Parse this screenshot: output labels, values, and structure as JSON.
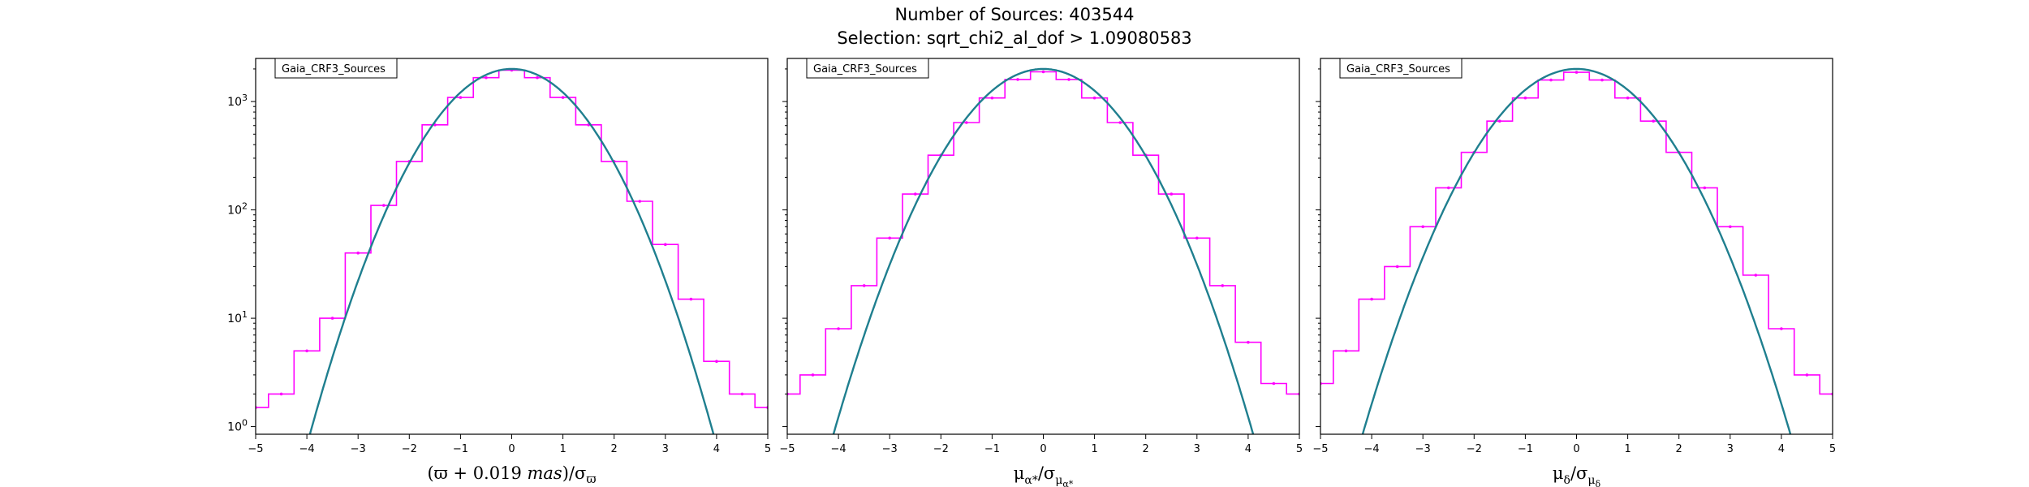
{
  "figure": {
    "title_line1": "Number of Sources: 403544",
    "title_line2": "Selection: sqrt_chi2_al_dof > 1.09080583"
  },
  "colors": {
    "histogram": "#ff00ff",
    "fit": "#1f7f8f",
    "axes": "#000000"
  },
  "chart_data": [
    {
      "type": "line",
      "panel": "left",
      "legend": "Gaia_CRF3_Sources",
      "xlabel": "(ϖ + 0.019 mas)/σϖ",
      "ylabel": "",
      "xlim": [
        -5,
        5
      ],
      "ylim": [
        0.85,
        2500
      ],
      "yscale": "log",
      "xticks": [
        "−5",
        "−4",
        "−3",
        "−2",
        "−1",
        "0",
        "1",
        "2",
        "3",
        "4",
        "5"
      ],
      "yticks": [
        {
          "base": "10",
          "exp": "0"
        },
        {
          "base": "10",
          "exp": "1"
        },
        {
          "base": "10",
          "exp": "2"
        },
        {
          "base": "10",
          "exp": "3"
        }
      ],
      "series": [
        {
          "kind": "histogram",
          "style": "step",
          "x": [
            -5.0,
            -4.5,
            -4.0,
            -3.5,
            -3.0,
            -2.5,
            -2.0,
            -1.5,
            -1.0,
            -0.5,
            0.0,
            0.5,
            1.0,
            1.5,
            2.0,
            2.5,
            3.0,
            3.5,
            4.0,
            4.5,
            5.0
          ],
          "y": [
            1.5,
            2,
            5,
            10,
            40,
            110,
            280,
            610,
            1090,
            1660,
            1950,
            1660,
            1090,
            610,
            280,
            120,
            48,
            15,
            4,
            2,
            1.5
          ]
        },
        {
          "kind": "gaussian_fit",
          "style": "line",
          "amplitude": 2000,
          "sigma": 1.0
        }
      ]
    },
    {
      "type": "line",
      "panel": "middle",
      "legend": "Gaia_CRF3_Sources",
      "xlabel": "μα*/σμα*",
      "ylabel": "",
      "xlim": [
        -5,
        5
      ],
      "ylim": [
        0.85,
        2500
      ],
      "yscale": "log",
      "xticks": [
        "−5",
        "−4",
        "−3",
        "−2",
        "−1",
        "0",
        "1",
        "2",
        "3",
        "4",
        "5"
      ],
      "yticks": [],
      "series": [
        {
          "kind": "histogram",
          "style": "step",
          "x": [
            -5.0,
            -4.5,
            -4.0,
            -3.5,
            -3.0,
            -2.5,
            -2.0,
            -1.5,
            -1.0,
            -0.5,
            0.0,
            0.5,
            1.0,
            1.5,
            2.0,
            2.5,
            3.0,
            3.5,
            4.0,
            4.5,
            5.0
          ],
          "y": [
            2,
            3,
            8,
            20,
            55,
            140,
            320,
            640,
            1080,
            1600,
            1880,
            1600,
            1080,
            640,
            320,
            140,
            55,
            20,
            6,
            2.5,
            2
          ]
        },
        {
          "kind": "gaussian_fit",
          "style": "line",
          "amplitude": 2000,
          "sigma": 1.04
        }
      ]
    },
    {
      "type": "line",
      "panel": "right",
      "legend": "Gaia_CRF3_Sources",
      "xlabel": "μδ/σμδ",
      "ylabel": "",
      "xlim": [
        -5,
        5
      ],
      "ylim": [
        0.85,
        2500
      ],
      "yscale": "log",
      "xticks": [
        "−5",
        "−4",
        "−3",
        "−2",
        "−1",
        "0",
        "1",
        "2",
        "3",
        "4",
        "5"
      ],
      "yticks": [],
      "series": [
        {
          "kind": "histogram",
          "style": "step",
          "x": [
            -5.0,
            -4.5,
            -4.0,
            -3.5,
            -3.0,
            -2.5,
            -2.0,
            -1.5,
            -1.0,
            -0.5,
            0.0,
            0.5,
            1.0,
            1.5,
            2.0,
            2.5,
            3.0,
            3.5,
            4.0,
            4.5,
            5.0
          ],
          "y": [
            2.5,
            5,
            15,
            30,
            70,
            160,
            340,
            660,
            1080,
            1580,
            1860,
            1580,
            1080,
            660,
            340,
            160,
            70,
            25,
            8,
            3,
            2
          ]
        },
        {
          "kind": "gaussian_fit",
          "style": "line",
          "amplitude": 2000,
          "sigma": 1.06
        }
      ]
    }
  ]
}
